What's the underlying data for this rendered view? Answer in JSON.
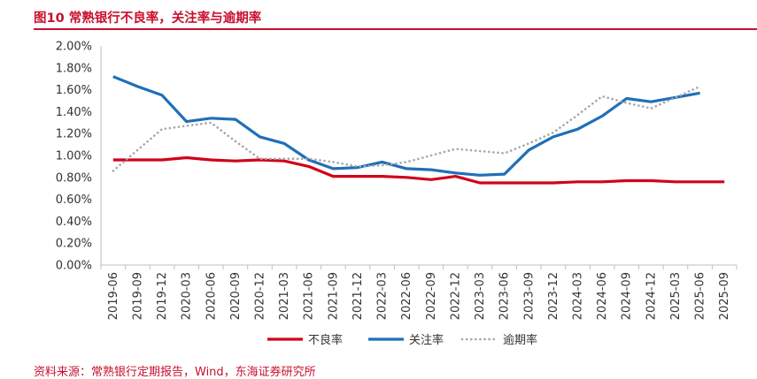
{
  "title": "图10  常熟银行不良率，关注率与逾期率",
  "source": "资料来源：常熟银行定期报告，Wind，东海证券研究所",
  "chart_data": {
    "type": "line",
    "categories": [
      "2019-06",
      "2019-09",
      "2019-12",
      "2020-03",
      "2020-06",
      "2020-09",
      "2020-12",
      "2021-03",
      "2021-06",
      "2021-09",
      "2021-12",
      "2022-03",
      "2022-06",
      "2022-09",
      "2022-12",
      "2023-03",
      "2023-06",
      "2023-09",
      "2023-12",
      "2024-03",
      "2024-06",
      "2024-09",
      "2024-12",
      "2025-03",
      "2025-06",
      "2025-09"
    ],
    "ylim": [
      0,
      2.0
    ],
    "yticks": [
      "0.00%",
      "0.20%",
      "0.40%",
      "0.60%",
      "0.80%",
      "1.00%",
      "1.20%",
      "1.40%",
      "1.60%",
      "1.80%",
      "2.00%"
    ],
    "grid": false,
    "legend_position": "bottom",
    "series": [
      {
        "name": "不良率",
        "color": "#d0021b",
        "style": "solid",
        "values": [
          0.96,
          0.96,
          0.96,
          0.98,
          0.96,
          0.95,
          0.96,
          0.95,
          0.9,
          0.81,
          0.81,
          0.81,
          0.8,
          0.78,
          0.81,
          0.75,
          0.75,
          0.75,
          0.75,
          0.76,
          0.76,
          0.77,
          0.77,
          0.76,
          0.76,
          0.76
        ]
      },
      {
        "name": "关注率",
        "color": "#1f6fb7",
        "style": "solid",
        "values": [
          1.72,
          1.63,
          1.55,
          1.31,
          1.34,
          1.33,
          1.17,
          1.11,
          0.96,
          0.88,
          0.89,
          0.94,
          0.88,
          0.87,
          0.84,
          0.82,
          0.83,
          1.05,
          1.17,
          1.24,
          1.36,
          1.52,
          1.49,
          1.53,
          1.57,
          null
        ]
      },
      {
        "name": "逾期率",
        "color": "#a6a6a6",
        "style": "dotted",
        "values": [
          0.86,
          1.05,
          1.24,
          1.27,
          1.3,
          1.13,
          0.97,
          0.97,
          0.97,
          0.94,
          0.9,
          0.91,
          0.94,
          1.0,
          1.06,
          1.04,
          1.02,
          1.11,
          1.21,
          1.37,
          1.54,
          1.48,
          1.43,
          1.53,
          1.63,
          null
        ]
      }
    ]
  }
}
